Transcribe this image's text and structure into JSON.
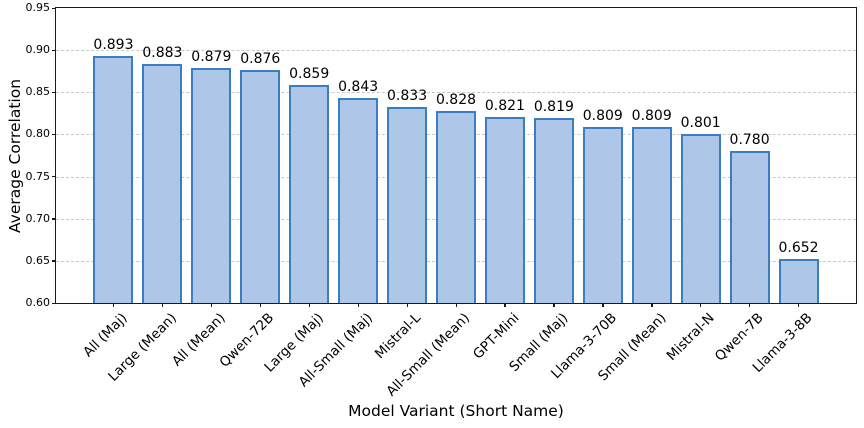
{
  "chart_data": {
    "type": "bar",
    "title": "",
    "xlabel": "Model Variant (Short Name)",
    "ylabel": "Average Correlation",
    "categories": [
      "All (Maj)",
      "Large (Mean)",
      "All (Mean)",
      "Qwen-72B",
      "Large (Maj)",
      "All-Small (Maj)",
      "Mistral-L",
      "All-Small (Mean)",
      "GPT-Mini",
      "Small (Maj)",
      "Llama-3-70B",
      "Small (Mean)",
      "Mistral-N",
      "Qwen-7B",
      "Llama-3-8B"
    ],
    "values": [
      0.893,
      0.883,
      0.879,
      0.876,
      0.859,
      0.843,
      0.833,
      0.828,
      0.821,
      0.819,
      0.809,
      0.809,
      0.801,
      0.78,
      0.652
    ],
    "value_labels": [
      "0.893",
      "0.883",
      "0.879",
      "0.876",
      "0.859",
      "0.843",
      "0.833",
      "0.828",
      "0.821",
      "0.819",
      "0.809",
      "0.809",
      "0.801",
      "0.780",
      "0.652"
    ],
    "ylim": [
      0.6,
      0.95
    ],
    "ytick_labels": [
      "0.60",
      "0.65",
      "0.70",
      "0.75",
      "0.80",
      "0.85",
      "0.90",
      "0.95"
    ],
    "grid": "horizontal-dashed",
    "legend": "none",
    "colors": {
      "bar_fill": "#aec7e8",
      "bar_edge": "#3a7ebf",
      "grid": "#c9c9c9",
      "spine": "#1a1a1a",
      "text": "#000000"
    }
  }
}
